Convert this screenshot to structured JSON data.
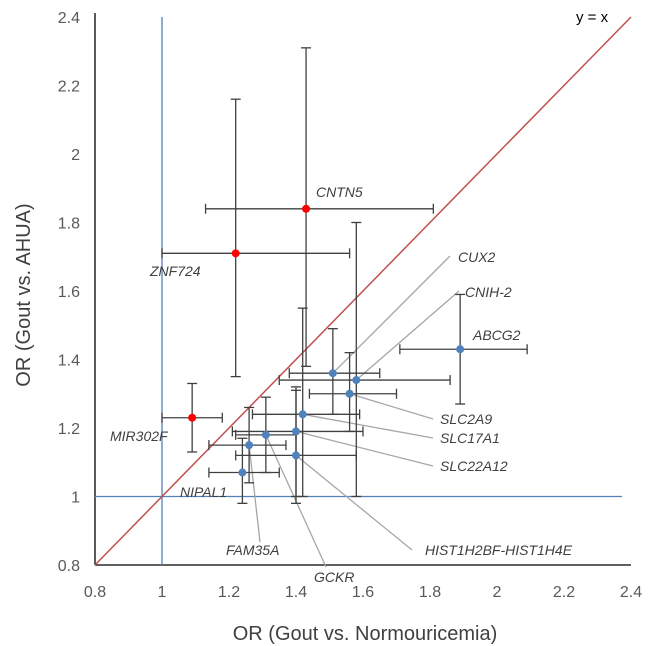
{
  "chart_data": {
    "type": "scatter",
    "xlabel": "OR (Gout vs. Normouricemia)",
    "ylabel": "OR (Gout vs. AHUA)",
    "xlim": [
      0.8,
      2.4
    ],
    "ylim": [
      0.8,
      2.4
    ],
    "x_ticks": [
      "0.8",
      "1",
      "1.2",
      "1.4",
      "1.6",
      "1.8",
      "2",
      "2.2",
      "2.4"
    ],
    "y_ticks": [
      "0.8",
      "1",
      "1.2",
      "1.4",
      "1.6",
      "1.8",
      "2",
      "2.2",
      "2.4"
    ],
    "reference_lines": {
      "identity_label": "y = x",
      "identity_color": "#c0504d",
      "unity_color": "#4f81bd",
      "x_equals": 1,
      "y_equals": 1
    },
    "colors": {
      "highlight": "#ff0000",
      "normal": "#4f81bd",
      "error_bar": "#404040",
      "leader": "#a6a6a6"
    },
    "grid": false,
    "points": [
      {
        "label": "CNTN5",
        "x": 1.43,
        "y": 1.84,
        "x_err": [
          1.13,
          1.81
        ],
        "y_err": [
          1.38,
          2.31
        ],
        "highlight": true
      },
      {
        "label": "ZNF724",
        "x": 1.22,
        "y": 1.71,
        "x_err": [
          1.0,
          1.56
        ],
        "y_err": [
          1.35,
          2.16
        ],
        "highlight": true
      },
      {
        "label": "MIR302F",
        "x": 1.09,
        "y": 1.23,
        "x_err": [
          1.0,
          1.18
        ],
        "y_err": [
          1.13,
          1.33
        ],
        "highlight": true
      },
      {
        "label": "ABCG2",
        "x": 1.89,
        "y": 1.43,
        "x_err": [
          1.71,
          2.09
        ],
        "y_err": [
          1.27,
          1.59
        ],
        "highlight": false
      },
      {
        "label": "CUX2",
        "x": 1.51,
        "y": 1.36,
        "x_err": [
          1.38,
          1.65
        ],
        "y_err": [
          1.24,
          1.49
        ],
        "highlight": false
      },
      {
        "label": "CNIH-2",
        "x": 1.58,
        "y": 1.34,
        "x_err": [
          1.35,
          1.86
        ],
        "y_err": [
          1.0,
          1.8
        ],
        "highlight": false
      },
      {
        "label": "SLC2A9",
        "x": 1.56,
        "y": 1.3,
        "x_err": [
          1.44,
          1.7
        ],
        "y_err": [
          1.19,
          1.42
        ],
        "highlight": false
      },
      {
        "label": "SLC17A1",
        "x": 1.42,
        "y": 1.24,
        "x_err": [
          1.27,
          1.59
        ],
        "y_err": [
          1.0,
          1.55
        ],
        "highlight": false
      },
      {
        "label": "SLC22A12",
        "x": 1.4,
        "y": 1.19,
        "x_err": [
          1.21,
          1.6
        ],
        "y_err": [
          1.0,
          1.32
        ],
        "highlight": false
      },
      {
        "label": "GCKR",
        "x": 1.31,
        "y": 1.18,
        "x_err": [
          1.22,
          1.4
        ],
        "y_err": [
          1.07,
          1.29
        ],
        "highlight": false
      },
      {
        "label": "HIST1H2BF-HIST1H4E",
        "x": 1.4,
        "y": 1.12,
        "x_err": [
          1.22,
          1.58
        ],
        "y_err": [
          0.98,
          1.31
        ],
        "highlight": false
      },
      {
        "label": "FAM35A",
        "x": 1.26,
        "y": 1.15,
        "x_err": [
          1.14,
          1.37
        ],
        "y_err": [
          1.04,
          1.26
        ],
        "highlight": false
      },
      {
        "label": "NIPAL1",
        "x": 1.24,
        "y": 1.07,
        "x_err": [
          1.14,
          1.35
        ],
        "y_err": [
          0.98,
          1.17
        ],
        "highlight": false
      }
    ]
  }
}
